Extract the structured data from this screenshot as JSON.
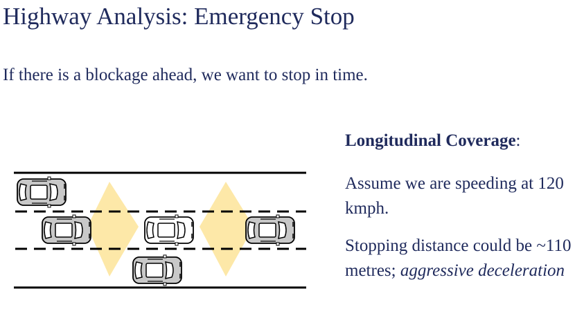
{
  "slide": {
    "title": "Highway Analysis: Emergency Stop",
    "subtitle": "If there is a blockage ahead, we want to stop in time."
  },
  "panel": {
    "heading": "Longitudinal Coverage",
    "heading_suffix": ":",
    "para1": "Assume we are speeding at 120 kmph.",
    "para2_plain": "Stopping distance could be ~110 metres; ",
    "para2_italic": "aggressive deceleration"
  },
  "diagram": {
    "lane_count": 3,
    "cars": [
      {
        "id": "car-top-left",
        "lane": "top",
        "style": "gray"
      },
      {
        "id": "car-middle-left",
        "lane": "middle",
        "style": "gray"
      },
      {
        "id": "car-middle-center",
        "lane": "middle",
        "style": "white"
      },
      {
        "id": "car-middle-right",
        "lane": "middle",
        "style": "gray"
      },
      {
        "id": "car-bottom-center",
        "lane": "bottom",
        "style": "gray"
      }
    ],
    "sensor_zones": [
      {
        "id": "rear-zone",
        "direction": "backward"
      },
      {
        "id": "front-zone",
        "direction": "forward"
      }
    ],
    "colors": {
      "text": "#1f2a5c",
      "zone": "#fde8a8",
      "car_gray": "#c8c8c8",
      "car_white": "#ffffff",
      "road": "#000000"
    }
  }
}
